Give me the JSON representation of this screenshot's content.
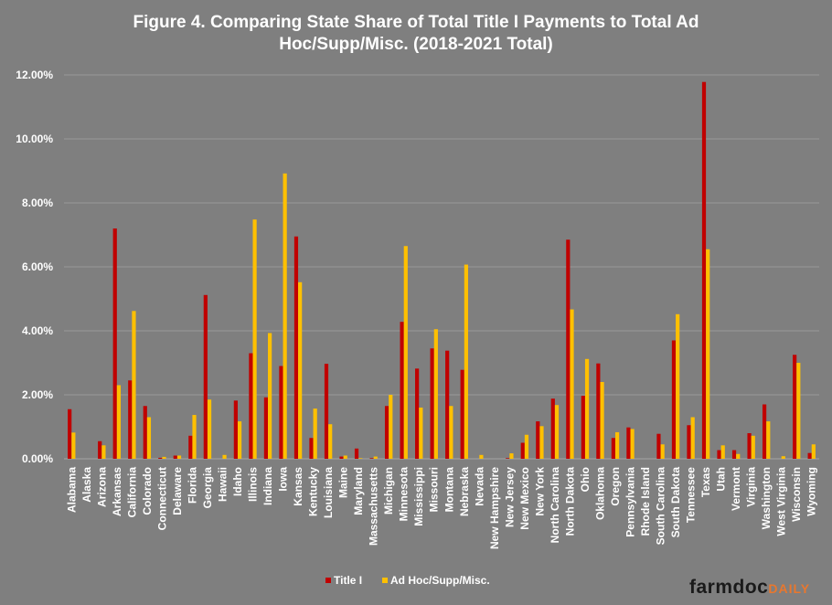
{
  "title_line1": "Figure 4. Comparing State Share of Total Title I Payments to Total Ad",
  "title_line2": "Hoc/Supp/Misc. (2018-2021 Total)",
  "brand": {
    "part1": "farmdoc",
    "part2": "DAILY"
  },
  "colors": {
    "background": "#7f7f7f",
    "title_i": "#c00000",
    "ad_hoc": "#ffc000",
    "gridline": "#999999"
  },
  "chart_data": {
    "type": "bar",
    "title": "Figure 4. Comparing State Share of Total Title I Payments to Total Ad Hoc/Supp/Misc. (2018-2021 Total)",
    "xlabel": "",
    "ylabel": "",
    "ylim": [
      0,
      12
    ],
    "yticks": [
      "0.00%",
      "2.00%",
      "4.00%",
      "6.00%",
      "8.00%",
      "10.00%",
      "12.00%"
    ],
    "grid": true,
    "legend": "bottom-center",
    "categories": [
      "Alabama",
      "Alaska",
      "Arizona",
      "Arkansas",
      "California",
      "Colorado",
      "Connecticut",
      "Delaware",
      "Florida",
      "Georgia",
      "Hawaii",
      "Idaho",
      "Illinois",
      "Indiana",
      "Iowa",
      "Kansas",
      "Kentucky",
      "Louisiana",
      "Maine",
      "Maryland",
      "Massachusetts",
      "Michigan",
      "Minnesota",
      "Mississippi",
      "Missouri",
      "Montana",
      "Nebraska",
      "Nevada",
      "New Hampshire",
      "New Jersey",
      "New Mexico",
      "New York",
      "North Carolina",
      "North Dakota",
      "Ohio",
      "Oklahoma",
      "Oregon",
      "Pennsylvania",
      "Rhode Island",
      "South Carolina",
      "South Dakota",
      "Tennessee",
      "Texas",
      "Utah",
      "Vermont",
      "Virginia",
      "Washington",
      "West Virginia",
      "Wisconsin",
      "Wyoming"
    ],
    "series": [
      {
        "name": "Title I",
        "values": [
          1.55,
          0.0,
          0.55,
          7.2,
          2.45,
          1.65,
          0.03,
          0.1,
          0.72,
          5.12,
          0.0,
          1.82,
          3.3,
          1.92,
          2.9,
          6.95,
          0.65,
          2.97,
          0.07,
          0.32,
          0.02,
          1.65,
          4.28,
          2.82,
          3.45,
          3.38,
          2.78,
          0.0,
          0.0,
          0.02,
          0.5,
          1.17,
          1.88,
          6.85,
          1.97,
          2.98,
          0.65,
          0.98,
          0.0,
          0.78,
          3.7,
          1.05,
          11.78,
          0.27,
          0.27,
          0.8,
          1.7,
          0.0,
          3.25,
          0.18
        ]
      },
      {
        "name": "Ad Hoc/Supp/Misc.",
        "values": [
          0.82,
          0.0,
          0.42,
          2.3,
          4.62,
          1.3,
          0.06,
          0.1,
          1.37,
          1.85,
          0.12,
          1.17,
          7.48,
          3.93,
          8.92,
          5.52,
          1.57,
          1.08,
          0.1,
          0.02,
          0.07,
          2.0,
          6.65,
          1.6,
          4.05,
          1.65,
          6.07,
          0.12,
          0.0,
          0.17,
          0.75,
          1.02,
          1.68,
          4.67,
          3.12,
          2.4,
          0.83,
          0.93,
          0.0,
          0.45,
          4.52,
          1.3,
          6.55,
          0.42,
          0.15,
          0.72,
          1.17,
          0.08,
          3.0,
          0.45
        ]
      }
    ]
  }
}
